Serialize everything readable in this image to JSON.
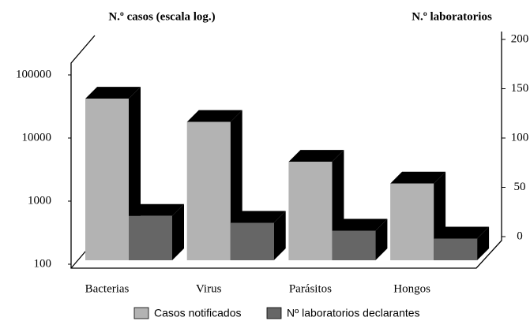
{
  "chart_data": {
    "type": "bar3d",
    "ylabel": "N.º casos (escala log.)",
    "y2label": "N.º laboratorios",
    "categories": [
      "Bacterias",
      "Virus",
      "Parásitos",
      "Hongos"
    ],
    "series": [
      {
        "name": "Casos notificados",
        "color": "#b3b3b3",
        "values": [
          42000,
          18000,
          4200,
          1900
        ]
      },
      {
        "name": "Nº laboratorios declarantes",
        "color": "#666666",
        "axis": "y2",
        "values": [
          45,
          38,
          30,
          22
        ]
      }
    ],
    "log_scale": true,
    "ylim": [
      100,
      100000
    ],
    "yticks": [
      100,
      1000,
      10000,
      100000
    ],
    "y2lim": [
      0,
      200
    ],
    "y2ticks": [
      0,
      50,
      100,
      150,
      200
    ]
  }
}
